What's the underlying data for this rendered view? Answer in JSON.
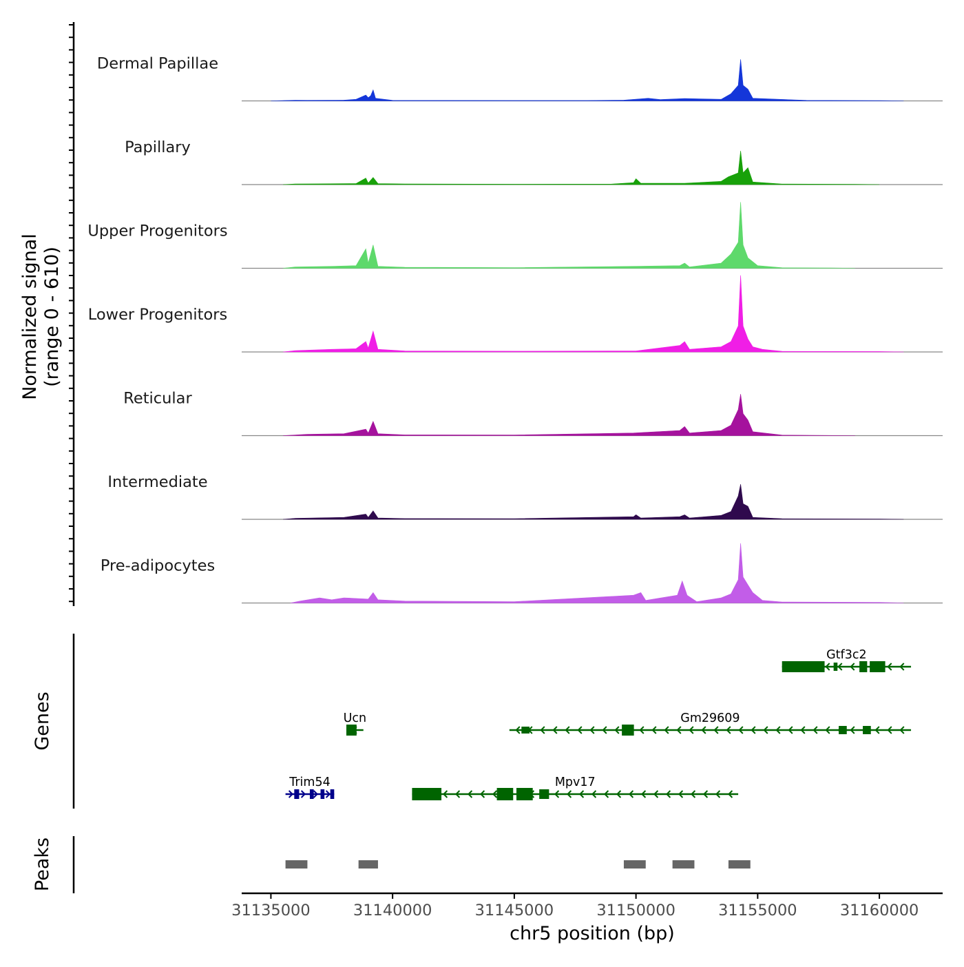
{
  "chart_data": {
    "type": "area",
    "title": "",
    "chromosome": "chr5",
    "xlabel": "chr5 position (bp)",
    "ylabel_line1": "Normalized signal",
    "ylabel_line2": "(range 0 - 610)",
    "genes_label": "Genes",
    "peaks_label": "Peaks",
    "xlim": [
      31133800,
      31162600
    ],
    "x_ticks": [
      31135000,
      31140000,
      31145000,
      31150000,
      31155000,
      31160000
    ],
    "x_tick_labels": [
      "31135000",
      "31140000",
      "31145000",
      "31150000",
      "31155000",
      "31160000"
    ],
    "signal_range": [
      0,
      610
    ],
    "tracks": [
      {
        "name": "Dermal Papillae",
        "color": "#1436d9",
        "points": [
          [
            31135000,
            0
          ],
          [
            31135600,
            3
          ],
          [
            31136000,
            5
          ],
          [
            31136500,
            4
          ],
          [
            31137300,
            5
          ],
          [
            31138000,
            6
          ],
          [
            31138500,
            12
          ],
          [
            31138900,
            45
          ],
          [
            31139000,
            25
          ],
          [
            31139100,
            40
          ],
          [
            31139200,
            85
          ],
          [
            31139300,
            20
          ],
          [
            31140000,
            4
          ],
          [
            31145000,
            3
          ],
          [
            31148000,
            3
          ],
          [
            31149500,
            6
          ],
          [
            31150500,
            20
          ],
          [
            31151000,
            10
          ],
          [
            31152000,
            18
          ],
          [
            31153500,
            12
          ],
          [
            31153900,
            55
          ],
          [
            31154200,
            120
          ],
          [
            31154300,
            320
          ],
          [
            31154400,
            120
          ],
          [
            31154600,
            90
          ],
          [
            31154800,
            20
          ],
          [
            31157000,
            4
          ],
          [
            31160000,
            2
          ],
          [
            31161000,
            0
          ]
        ]
      },
      {
        "name": "Papillary",
        "color": "#18a10a",
        "points": [
          [
            31135500,
            0
          ],
          [
            31136000,
            5
          ],
          [
            31137000,
            6
          ],
          [
            31138500,
            8
          ],
          [
            31138900,
            50
          ],
          [
            31139000,
            12
          ],
          [
            31139200,
            55
          ],
          [
            31139400,
            8
          ],
          [
            31140500,
            5
          ],
          [
            31145000,
            3
          ],
          [
            31149000,
            4
          ],
          [
            31149900,
            15
          ],
          [
            31150000,
            45
          ],
          [
            31150200,
            10
          ],
          [
            31152000,
            10
          ],
          [
            31153500,
            25
          ],
          [
            31153800,
            60
          ],
          [
            31154200,
            90
          ],
          [
            31154300,
            260
          ],
          [
            31154400,
            90
          ],
          [
            31154600,
            130
          ],
          [
            31154800,
            20
          ],
          [
            31156000,
            4
          ],
          [
            31159000,
            2
          ],
          [
            31160000,
            0
          ]
        ]
      },
      {
        "name": "Upper Progenitors",
        "color": "#5ed96b",
        "points": [
          [
            31135500,
            0
          ],
          [
            31136000,
            10
          ],
          [
            31137500,
            15
          ],
          [
            31138500,
            20
          ],
          [
            31138900,
            150
          ],
          [
            31139000,
            40
          ],
          [
            31139200,
            180
          ],
          [
            31139400,
            15
          ],
          [
            31140500,
            8
          ],
          [
            31145000,
            5
          ],
          [
            31149900,
            15
          ],
          [
            31151800,
            20
          ],
          [
            31152000,
            40
          ],
          [
            31152200,
            10
          ],
          [
            31153500,
            40
          ],
          [
            31153900,
            110
          ],
          [
            31154200,
            200
          ],
          [
            31154300,
            510
          ],
          [
            31154400,
            180
          ],
          [
            31154600,
            80
          ],
          [
            31155000,
            20
          ],
          [
            31156000,
            4
          ],
          [
            31158000,
            2
          ],
          [
            31159000,
            0
          ]
        ]
      },
      {
        "name": "Lower Progenitors",
        "color": "#f01ee6",
        "points": [
          [
            31135500,
            0
          ],
          [
            31136000,
            10
          ],
          [
            31137500,
            20
          ],
          [
            31138500,
            25
          ],
          [
            31138900,
            80
          ],
          [
            31139000,
            30
          ],
          [
            31139200,
            160
          ],
          [
            31139400,
            20
          ],
          [
            31140500,
            8
          ],
          [
            31145000,
            6
          ],
          [
            31150000,
            8
          ],
          [
            31151800,
            50
          ],
          [
            31152000,
            80
          ],
          [
            31152200,
            20
          ],
          [
            31153500,
            40
          ],
          [
            31153900,
            80
          ],
          [
            31154200,
            200
          ],
          [
            31154300,
            590
          ],
          [
            31154400,
            200
          ],
          [
            31154600,
            100
          ],
          [
            31154800,
            40
          ],
          [
            31155200,
            20
          ],
          [
            31156000,
            5
          ],
          [
            31160000,
            3
          ],
          [
            31161000,
            0
          ]
        ]
      },
      {
        "name": "Reticular",
        "color": "#a5129d",
        "points": [
          [
            31135500,
            0
          ],
          [
            31136500,
            10
          ],
          [
            31138000,
            15
          ],
          [
            31138900,
            50
          ],
          [
            31139000,
            20
          ],
          [
            31139200,
            110
          ],
          [
            31139400,
            15
          ],
          [
            31140500,
            6
          ],
          [
            31145000,
            5
          ],
          [
            31149900,
            20
          ],
          [
            31151800,
            40
          ],
          [
            31152000,
            70
          ],
          [
            31152200,
            20
          ],
          [
            31153500,
            40
          ],
          [
            31153900,
            80
          ],
          [
            31154200,
            200
          ],
          [
            31154300,
            320
          ],
          [
            31154400,
            170
          ],
          [
            31154600,
            120
          ],
          [
            31154800,
            30
          ],
          [
            31156000,
            4
          ],
          [
            31159000,
            0
          ]
        ]
      },
      {
        "name": "Intermediate",
        "color": "#2f0a4d",
        "points": [
          [
            31135500,
            0
          ],
          [
            31136000,
            8
          ],
          [
            31138000,
            15
          ],
          [
            31138900,
            40
          ],
          [
            31139000,
            15
          ],
          [
            31139200,
            65
          ],
          [
            31139400,
            10
          ],
          [
            31140500,
            6
          ],
          [
            31145000,
            5
          ],
          [
            31149900,
            20
          ],
          [
            31150000,
            35
          ],
          [
            31150200,
            10
          ],
          [
            31151800,
            20
          ],
          [
            31152000,
            35
          ],
          [
            31152200,
            10
          ],
          [
            31153500,
            30
          ],
          [
            31153900,
            60
          ],
          [
            31154200,
            180
          ],
          [
            31154300,
            270
          ],
          [
            31154400,
            120
          ],
          [
            31154600,
            100
          ],
          [
            31154800,
            15
          ],
          [
            31156000,
            5
          ],
          [
            31160000,
            2
          ],
          [
            31161000,
            0
          ]
        ]
      },
      {
        "name": "Pre-adipocytes",
        "color": "#c25de8",
        "points": [
          [
            31135800,
            0
          ],
          [
            31136200,
            15
          ],
          [
            31137000,
            40
          ],
          [
            31137500,
            25
          ],
          [
            31138000,
            40
          ],
          [
            31138500,
            35
          ],
          [
            31139000,
            30
          ],
          [
            31139200,
            80
          ],
          [
            31139400,
            25
          ],
          [
            31140500,
            15
          ],
          [
            31145000,
            10
          ],
          [
            31149900,
            60
          ],
          [
            31150200,
            80
          ],
          [
            31150400,
            20
          ],
          [
            31151700,
            60
          ],
          [
            31151900,
            170
          ],
          [
            31152100,
            60
          ],
          [
            31152500,
            10
          ],
          [
            31153500,
            40
          ],
          [
            31153900,
            70
          ],
          [
            31154200,
            180
          ],
          [
            31154300,
            460
          ],
          [
            31154400,
            200
          ],
          [
            31154600,
            140
          ],
          [
            31154800,
            80
          ],
          [
            31155200,
            20
          ],
          [
            31156000,
            8
          ],
          [
            31160000,
            5
          ],
          [
            31161000,
            0
          ]
        ]
      }
    ],
    "genes": [
      {
        "name": "Gtf3c2",
        "strand": "-",
        "row": 1,
        "color": "#006400",
        "start": 31156000,
        "end": 31161300
      },
      {
        "name": "Gm29609",
        "strand": "-",
        "row": 2,
        "color": "#006400",
        "start": 31144800,
        "end": 31161300
      },
      {
        "name": "Ucn",
        "strand": "-",
        "row": 2,
        "color": "#006400",
        "start": 31138100,
        "end": 31138800
      },
      {
        "name": "Trim54",
        "strand": "+",
        "row": 3,
        "color": "#00008b",
        "start": 31135600,
        "end": 31137600
      },
      {
        "name": "Mpv17",
        "strand": "-",
        "row": 3,
        "color": "#006400",
        "start": 31140800,
        "end": 31154200
      }
    ],
    "peaks": [
      [
        31135600,
        31136500
      ],
      [
        31138600,
        31139400
      ],
      [
        31149500,
        31150400
      ],
      [
        31151500,
        31152400
      ],
      [
        31153800,
        31154700
      ]
    ]
  }
}
